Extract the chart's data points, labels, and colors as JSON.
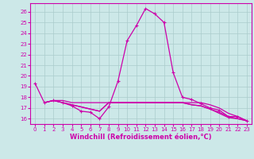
{
  "xlabel": "Windchill (Refroidissement éolien,°C)",
  "bg_color": "#cce8e8",
  "grid_color": "#aacccc",
  "line_color": "#cc00aa",
  "spine_color": "#cc00aa",
  "xlim": [
    -0.5,
    23.5
  ],
  "ylim": [
    15.5,
    26.8
  ],
  "xticks": [
    0,
    1,
    2,
    3,
    4,
    5,
    6,
    7,
    8,
    9,
    10,
    11,
    12,
    13,
    14,
    15,
    16,
    17,
    18,
    19,
    20,
    21,
    22,
    23
  ],
  "yticks": [
    16,
    17,
    18,
    19,
    20,
    21,
    22,
    23,
    24,
    25,
    26
  ],
  "series_main": {
    "x": [
      0,
      1,
      2,
      3,
      4,
      5,
      6,
      7,
      8,
      9,
      10,
      11,
      12,
      13,
      14,
      15,
      16,
      17,
      18,
      19,
      20,
      21,
      22,
      23
    ],
    "y": [
      19.3,
      17.5,
      17.7,
      17.5,
      17.2,
      16.7,
      16.6,
      16.0,
      17.1,
      19.5,
      23.3,
      24.7,
      26.3,
      25.8,
      25.0,
      20.3,
      18.0,
      17.8,
      17.4,
      17.0,
      16.8,
      16.2,
      16.2,
      15.8
    ]
  },
  "series_extra": [
    {
      "x": [
        1,
        2,
        3,
        4,
        5,
        6,
        7,
        8,
        9,
        10,
        11,
        12,
        13,
        14,
        15,
        16,
        17,
        18,
        19,
        20,
        21,
        22,
        23
      ],
      "y": [
        17.5,
        17.7,
        17.7,
        17.5,
        17.5,
        17.5,
        17.5,
        17.5,
        17.5,
        17.5,
        17.5,
        17.5,
        17.5,
        17.5,
        17.5,
        17.5,
        17.5,
        17.5,
        17.3,
        17.0,
        16.5,
        16.2,
        15.8
      ]
    },
    {
      "x": [
        1,
        2,
        3,
        4,
        5,
        6,
        7,
        8,
        9,
        10,
        11,
        12,
        13,
        14,
        15,
        16,
        17,
        18,
        19,
        20,
        21,
        22,
        23
      ],
      "y": [
        17.5,
        17.7,
        17.5,
        17.3,
        17.1,
        16.9,
        16.7,
        17.5,
        17.5,
        17.5,
        17.5,
        17.5,
        17.5,
        17.5,
        17.5,
        17.5,
        17.3,
        17.2,
        16.9,
        16.6,
        16.2,
        16.0,
        15.8
      ]
    },
    {
      "x": [
        1,
        2,
        3,
        4,
        5,
        6,
        7,
        8,
        9,
        10,
        11,
        12,
        13,
        14,
        15,
        16,
        17,
        18,
        19,
        20,
        21,
        22,
        23
      ],
      "y": [
        17.5,
        17.7,
        17.5,
        17.3,
        17.1,
        16.9,
        16.7,
        17.5,
        17.5,
        17.5,
        17.5,
        17.5,
        17.5,
        17.5,
        17.5,
        17.5,
        17.3,
        17.2,
        16.9,
        16.5,
        16.1,
        16.0,
        15.8
      ]
    }
  ],
  "tick_fontsize": 5.0,
  "xlabel_fontsize": 6.0,
  "linewidth": 0.9,
  "marker_size": 3.5,
  "figsize": [
    3.2,
    2.0
  ],
  "dpi": 100
}
